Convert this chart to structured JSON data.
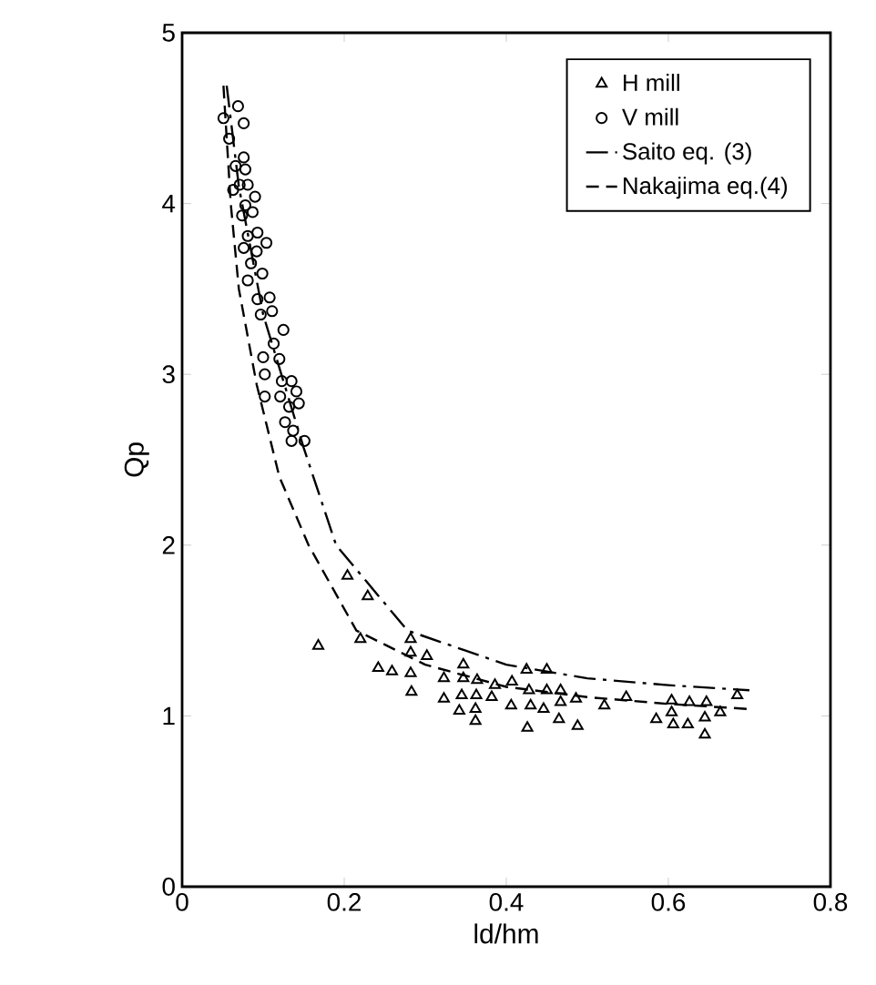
{
  "chart_data": {
    "type": "scatter",
    "xlabel": "ld/hm",
    "ylabel": "Qp",
    "xlim": [
      0,
      0.8
    ],
    "ylim": [
      0,
      5
    ],
    "xticks": [
      0,
      0.2,
      0.4,
      0.6,
      0.8
    ],
    "yticks": [
      0,
      1,
      2,
      3,
      4,
      5
    ],
    "legend": "top right",
    "series": [
      {
        "name": "H  mill",
        "marker": "triangle",
        "color": "#000000",
        "x": [
          0.168,
          0.204,
          0.229,
          0.22,
          0.242,
          0.259,
          0.282,
          0.282,
          0.282,
          0.283,
          0.302,
          0.323,
          0.323,
          0.347,
          0.347,
          0.345,
          0.342,
          0.364,
          0.363,
          0.362,
          0.362,
          0.386,
          0.382,
          0.407,
          0.406,
          0.425,
          0.428,
          0.43,
          0.426,
          0.45,
          0.45,
          0.446,
          0.467,
          0.467,
          0.465,
          0.486,
          0.488,
          0.521,
          0.548,
          0.585,
          0.604,
          0.604,
          0.606,
          0.626,
          0.624,
          0.647,
          0.645,
          0.645,
          0.664,
          0.685
        ],
        "values": [
          1.41,
          1.82,
          1.7,
          1.45,
          1.28,
          1.26,
          1.45,
          1.37,
          1.25,
          1.14,
          1.35,
          1.22,
          1.1,
          1.3,
          1.22,
          1.12,
          1.03,
          1.21,
          1.12,
          1.04,
          0.97,
          1.18,
          1.11,
          1.2,
          1.06,
          1.27,
          1.15,
          1.06,
          0.93,
          1.27,
          1.15,
          1.04,
          1.15,
          1.08,
          0.98,
          1.1,
          0.94,
          1.06,
          1.11,
          0.98,
          1.09,
          1.02,
          0.95,
          1.08,
          0.95,
          1.08,
          0.99,
          0.89,
          1.02,
          1.12
        ]
      },
      {
        "name": "V  mill",
        "marker": "circle",
        "color": "#000000",
        "x": [
          0.051,
          0.069,
          0.076,
          0.058,
          0.076,
          0.066,
          0.078,
          0.071,
          0.081,
          0.063,
          0.09,
          0.078,
          0.087,
          0.074,
          0.093,
          0.081,
          0.104,
          0.076,
          0.092,
          0.085,
          0.099,
          0.081,
          0.093,
          0.108,
          0.097,
          0.111,
          0.125,
          0.113,
          0.1,
          0.12,
          0.135,
          0.102,
          0.123,
          0.141,
          0.121,
          0.132,
          0.144,
          0.102,
          0.127,
          0.137,
          0.151,
          0.135
        ],
        "values": [
          4.5,
          4.57,
          4.47,
          4.38,
          4.27,
          4.22,
          4.2,
          4.11,
          4.11,
          4.08,
          4.04,
          3.99,
          3.95,
          3.93,
          3.83,
          3.81,
          3.77,
          3.74,
          3.72,
          3.65,
          3.59,
          3.55,
          3.44,
          3.45,
          3.35,
          3.37,
          3.26,
          3.18,
          3.1,
          3.09,
          2.96,
          3.0,
          2.96,
          2.9,
          2.87,
          2.81,
          2.83,
          2.87,
          2.72,
          2.67,
          2.61,
          2.61
        ]
      },
      {
        "name": "Saito eq. (3)",
        "type": "line",
        "line_style": "dashdot",
        "marker": "none",
        "color": "#000000",
        "x": [
          0.055,
          0.07,
          0.1,
          0.15,
          0.19,
          0.278,
          0.4,
          0.5,
          0.6,
          0.7
        ],
        "values": [
          4.69,
          4.1,
          3.35,
          2.57,
          2.0,
          1.5,
          1.3,
          1.22,
          1.18,
          1.15
        ]
      },
      {
        "name": "Nakajima eq.(4)",
        "type": "line",
        "line_style": "dashed",
        "marker": "none",
        "color": "#000000",
        "x": [
          0.051,
          0.06,
          0.07,
          0.092,
          0.12,
          0.156,
          0.215,
          0.3,
          0.4,
          0.5,
          0.6,
          0.7
        ],
        "values": [
          4.69,
          4.0,
          3.5,
          2.94,
          2.4,
          2.0,
          1.5,
          1.3,
          1.17,
          1.11,
          1.07,
          1.04
        ]
      }
    ]
  }
}
